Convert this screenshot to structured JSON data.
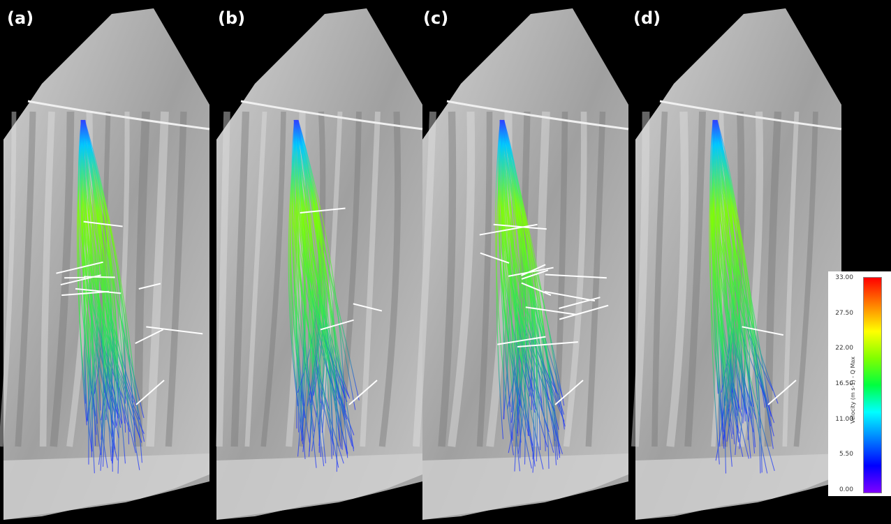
{
  "panels": [
    {
      "label": "(a)"
    },
    {
      "label": "(b)"
    },
    {
      "label": "(c)"
    },
    {
      "label": "(d)"
    }
  ],
  "legend": {
    "title": "Velocity (m s-1) - Q Max",
    "ticks": [
      "33.00",
      "27.50",
      "22.00",
      "16.50",
      "11.00",
      "5.50",
      "0.00"
    ],
    "colors": [
      "#ff0000",
      "#ff8000",
      "#ffff00",
      "#80ff00",
      "#00ff40",
      "#00ffff",
      "#0080ff",
      "#0000ff",
      "#8000ff"
    ]
  },
  "colors": {
    "background": "#000000",
    "terrain": "#a8a8a8",
    "highlight": "#ffffff"
  }
}
